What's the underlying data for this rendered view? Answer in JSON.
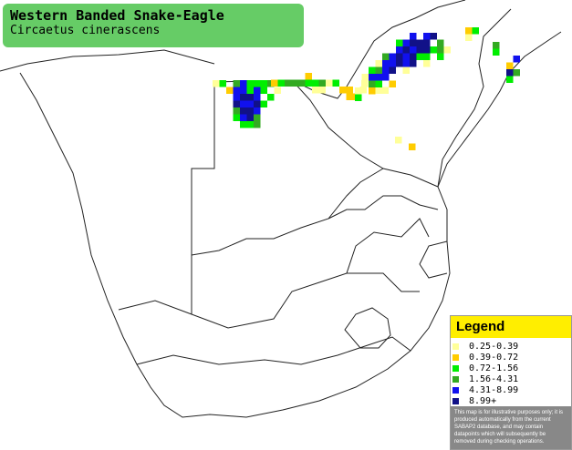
{
  "header": {
    "title": "Western Banded Snake-Eagle",
    "subtitle": "Circaetus cinerascens"
  },
  "legend": {
    "title": "Legend",
    "items": [
      {
        "label": "0.25-0.39",
        "color": "#ffff99"
      },
      {
        "label": "0.39-0.72",
        "color": "#ffcc00"
      },
      {
        "label": "0.72-1.56",
        "color": "#00ee00"
      },
      {
        "label": "1.56-4.31",
        "color": "#33aa22"
      },
      {
        "label": "4.31-8.99",
        "color": "#1111ee"
      },
      {
        "label": "8.99+",
        "color": "#111188"
      }
    ]
  },
  "disclaimer": "This map is for illustrative purposes only; it is produced automatically from the current SABAP2 database, and may contain datapoints which will subsequently be removed during checking operations."
}
